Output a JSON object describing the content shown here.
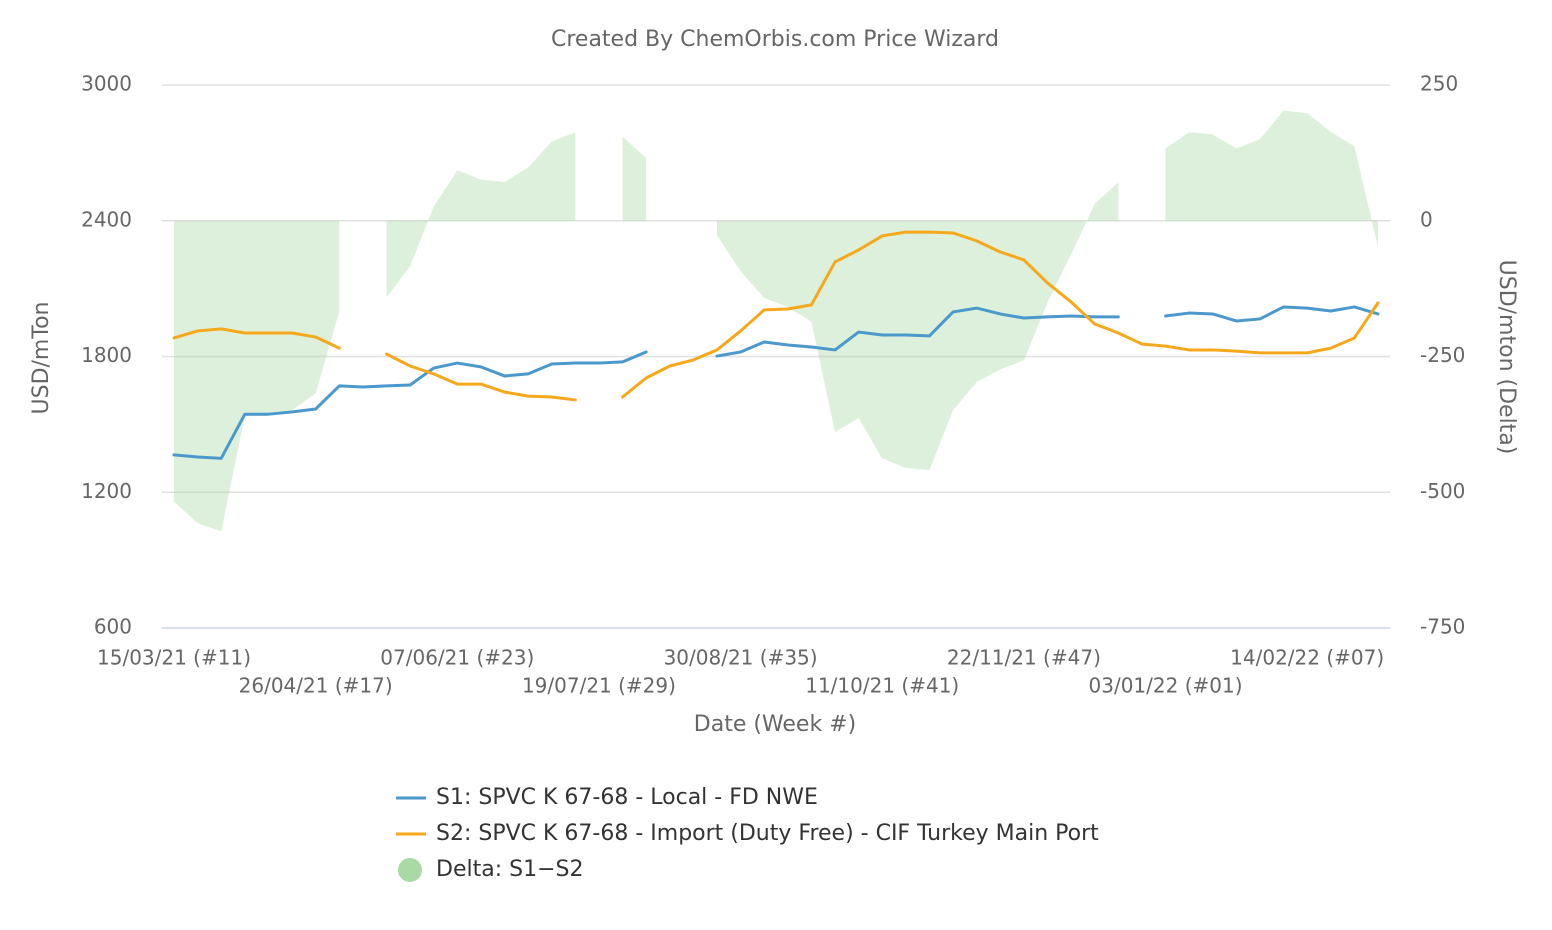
{
  "chart_data": {
    "type": "line",
    "title": "Created By ChemOrbis.com Price Wizard",
    "x_label": "Date (Week #)",
    "y_label": "USD/mTon",
    "y2_label": "USD/mton (Delta)",
    "categories": [
      "15/03/21 (#11)",
      null,
      null,
      null,
      null,
      null,
      "26/04/21 (#17)",
      null,
      null,
      null,
      null,
      null,
      "07/06/21 (#23)",
      null,
      null,
      null,
      null,
      null,
      "19/07/21 (#29)",
      null,
      null,
      null,
      null,
      null,
      "30/08/21 (#35)",
      null,
      null,
      null,
      null,
      null,
      "11/10/21 (#41)",
      null,
      null,
      null,
      null,
      null,
      "22/11/21 (#47)",
      null,
      null,
      null,
      null,
      null,
      "03/01/22 (#01)",
      null,
      null,
      null,
      null,
      null,
      "14/02/22 (#07)",
      null,
      null,
      null
    ],
    "ylim": [
      600,
      3000
    ],
    "yticks": [
      600,
      1200,
      1800,
      2400,
      3000
    ],
    "y2lim": [
      -750,
      250
    ],
    "y2ticks": [
      -750,
      -500,
      -250,
      0,
      250
    ],
    "grid": true,
    "series": [
      {
        "name": "S1: SPVC K 67-68 - Local - FD NWE",
        "color": "#4a98cc",
        "type": "line",
        "values": [
          1365,
          1356,
          1350,
          1545,
          1545,
          1555,
          1568,
          1670,
          1665,
          1670,
          1674,
          1749,
          1771,
          1754,
          1714,
          1723,
          1767,
          1771,
          1771,
          1776,
          1820,
          null,
          null,
          1802,
          1820,
          1864,
          1851,
          1842,
          1829,
          1908,
          1895,
          1895,
          1891,
          1997,
          2014,
          1988,
          1970,
          1975,
          1979,
          1975,
          1975,
          null,
          1979,
          1992,
          1988,
          1957,
          1966,
          2019,
          2014,
          2001,
          2019,
          1988
        ]
      },
      {
        "name": "S2: SPVC K 67-68 - Import (Duty Free) - CIF Turkey Main Port",
        "color": "#f5a81c",
        "type": "line",
        "values": [
          1882,
          1913,
          1922,
          1904,
          1904,
          1904,
          1886,
          1837,
          null,
          1811,
          1758,
          1723,
          1678,
          1678,
          1643,
          1625,
          1621,
          1608,
          null,
          1621,
          1705,
          1758,
          1785,
          1829,
          1913,
          2006,
          2010,
          2028,
          2218,
          2271,
          2333,
          2350,
          2350,
          2346,
          2311,
          2262,
          2227,
          2125,
          2041,
          1944,
          1904,
          1855,
          1846,
          1829,
          1829,
          1824,
          1816,
          1816,
          1816,
          1837,
          1882,
          2037
        ]
      },
      {
        "name": "Delta: S1−S2",
        "color": "#a9d9a5",
        "type": "area",
        "axis": "y2",
        "values": [
          -517,
          -557,
          -572,
          -359,
          -359,
          -349,
          -318,
          -167,
          null,
          -141,
          -84,
          26,
          93,
          76,
          71,
          98,
          146,
          163,
          null,
          155,
          115,
          null,
          null,
          -27,
          -93,
          -142,
          -159,
          -186,
          -389,
          -363,
          -438,
          -455,
          -459,
          -349,
          -297,
          -274,
          -257,
          -150,
          -62,
          31,
          71,
          null,
          133,
          163,
          159,
          133,
          150,
          203,
          198,
          164,
          137,
          -49
        ]
      }
    ]
  }
}
